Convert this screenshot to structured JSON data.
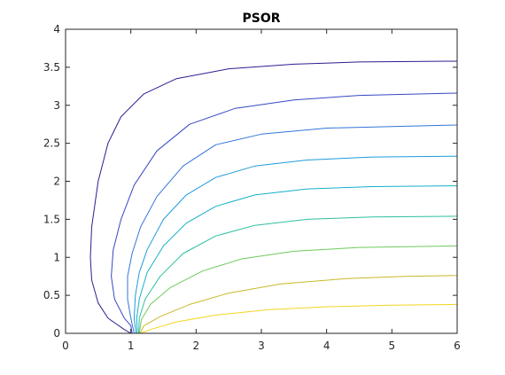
{
  "chart_data": {
    "type": "line",
    "title": "PSOR",
    "xlabel": "",
    "ylabel": "",
    "xlim": [
      0,
      6
    ],
    "ylim": [
      0,
      4
    ],
    "xticks": [
      0,
      1,
      2,
      3,
      4,
      5,
      6
    ],
    "yticks": [
      0,
      0.5,
      1,
      1.5,
      2,
      2.5,
      3,
      3.5,
      4
    ],
    "grid": false,
    "legend": "none",
    "series": [
      {
        "color": "#2b1e8f",
        "points": [
          [
            1.0,
            0.0
          ],
          [
            0.9,
            0.05
          ],
          [
            0.65,
            0.2
          ],
          [
            0.5,
            0.4
          ],
          [
            0.4,
            0.7
          ],
          [
            0.38,
            1.0
          ],
          [
            0.4,
            1.4
          ],
          [
            0.5,
            2.0
          ],
          [
            0.65,
            2.5
          ],
          [
            0.85,
            2.85
          ],
          [
            1.2,
            3.15
          ],
          [
            1.7,
            3.35
          ],
          [
            2.5,
            3.48
          ],
          [
            3.5,
            3.54
          ],
          [
            4.5,
            3.57
          ],
          [
            6.0,
            3.58
          ]
        ]
      },
      {
        "color": "#3548c4",
        "points": [
          [
            1.02,
            0.0
          ],
          [
            1.0,
            0.1
          ],
          [
            0.9,
            0.2
          ],
          [
            0.75,
            0.45
          ],
          [
            0.7,
            0.75
          ],
          [
            0.73,
            1.1
          ],
          [
            0.85,
            1.5
          ],
          [
            1.05,
            1.95
          ],
          [
            1.4,
            2.4
          ],
          [
            1.9,
            2.75
          ],
          [
            2.6,
            2.96
          ],
          [
            3.5,
            3.07
          ],
          [
            4.5,
            3.13
          ],
          [
            6.0,
            3.16
          ]
        ]
      },
      {
        "color": "#3274d9",
        "points": [
          [
            1.05,
            0.0
          ],
          [
            1.0,
            0.2
          ],
          [
            0.95,
            0.45
          ],
          [
            0.95,
            0.75
          ],
          [
            1.02,
            1.05
          ],
          [
            1.15,
            1.4
          ],
          [
            1.4,
            1.8
          ],
          [
            1.8,
            2.2
          ],
          [
            2.3,
            2.48
          ],
          [
            3.0,
            2.62
          ],
          [
            4.0,
            2.7
          ],
          [
            6.0,
            2.74
          ]
        ]
      },
      {
        "color": "#1f9bdc",
        "points": [
          [
            1.08,
            0.0
          ],
          [
            1.05,
            0.2
          ],
          [
            1.07,
            0.5
          ],
          [
            1.13,
            0.8
          ],
          [
            1.25,
            1.1
          ],
          [
            1.5,
            1.5
          ],
          [
            1.85,
            1.82
          ],
          [
            2.3,
            2.05
          ],
          [
            2.9,
            2.2
          ],
          [
            3.7,
            2.28
          ],
          [
            4.7,
            2.32
          ],
          [
            6.0,
            2.33
          ]
        ]
      },
      {
        "color": "#15b0c8",
        "points": [
          [
            1.1,
            0.0
          ],
          [
            1.09,
            0.2
          ],
          [
            1.13,
            0.45
          ],
          [
            1.25,
            0.8
          ],
          [
            1.5,
            1.15
          ],
          [
            1.85,
            1.45
          ],
          [
            2.3,
            1.67
          ],
          [
            2.9,
            1.82
          ],
          [
            3.7,
            1.9
          ],
          [
            4.7,
            1.93
          ],
          [
            6.0,
            1.94
          ]
        ]
      },
      {
        "color": "#2dbfa0",
        "points": [
          [
            1.12,
            0.0
          ],
          [
            1.13,
            0.2
          ],
          [
            1.22,
            0.45
          ],
          [
            1.45,
            0.75
          ],
          [
            1.8,
            1.05
          ],
          [
            2.3,
            1.28
          ],
          [
            2.9,
            1.42
          ],
          [
            3.7,
            1.5
          ],
          [
            4.7,
            1.53
          ],
          [
            6.0,
            1.54
          ]
        ]
      },
      {
        "color": "#6fca5c",
        "points": [
          [
            1.13,
            0.0
          ],
          [
            1.16,
            0.18
          ],
          [
            1.3,
            0.38
          ],
          [
            1.6,
            0.6
          ],
          [
            2.1,
            0.82
          ],
          [
            2.7,
            0.98
          ],
          [
            3.5,
            1.08
          ],
          [
            4.5,
            1.13
          ],
          [
            6.0,
            1.15
          ]
        ]
      },
      {
        "color": "#c9b82a",
        "points": [
          [
            1.14,
            0.0
          ],
          [
            1.2,
            0.1
          ],
          [
            1.45,
            0.22
          ],
          [
            1.9,
            0.38
          ],
          [
            2.5,
            0.53
          ],
          [
            3.3,
            0.65
          ],
          [
            4.3,
            0.72
          ],
          [
            5.2,
            0.75
          ],
          [
            6.0,
            0.76
          ]
        ]
      },
      {
        "color": "#f3d520",
        "points": [
          [
            1.15,
            0.0
          ],
          [
            1.3,
            0.05
          ],
          [
            1.7,
            0.15
          ],
          [
            2.3,
            0.24
          ],
          [
            3.1,
            0.31
          ],
          [
            4.0,
            0.35
          ],
          [
            5.0,
            0.37
          ],
          [
            6.0,
            0.38
          ]
        ]
      },
      {
        "color": "#f9e826",
        "points": [
          [
            1.16,
            0.0
          ],
          [
            6.0,
            0.0
          ]
        ]
      }
    ]
  }
}
